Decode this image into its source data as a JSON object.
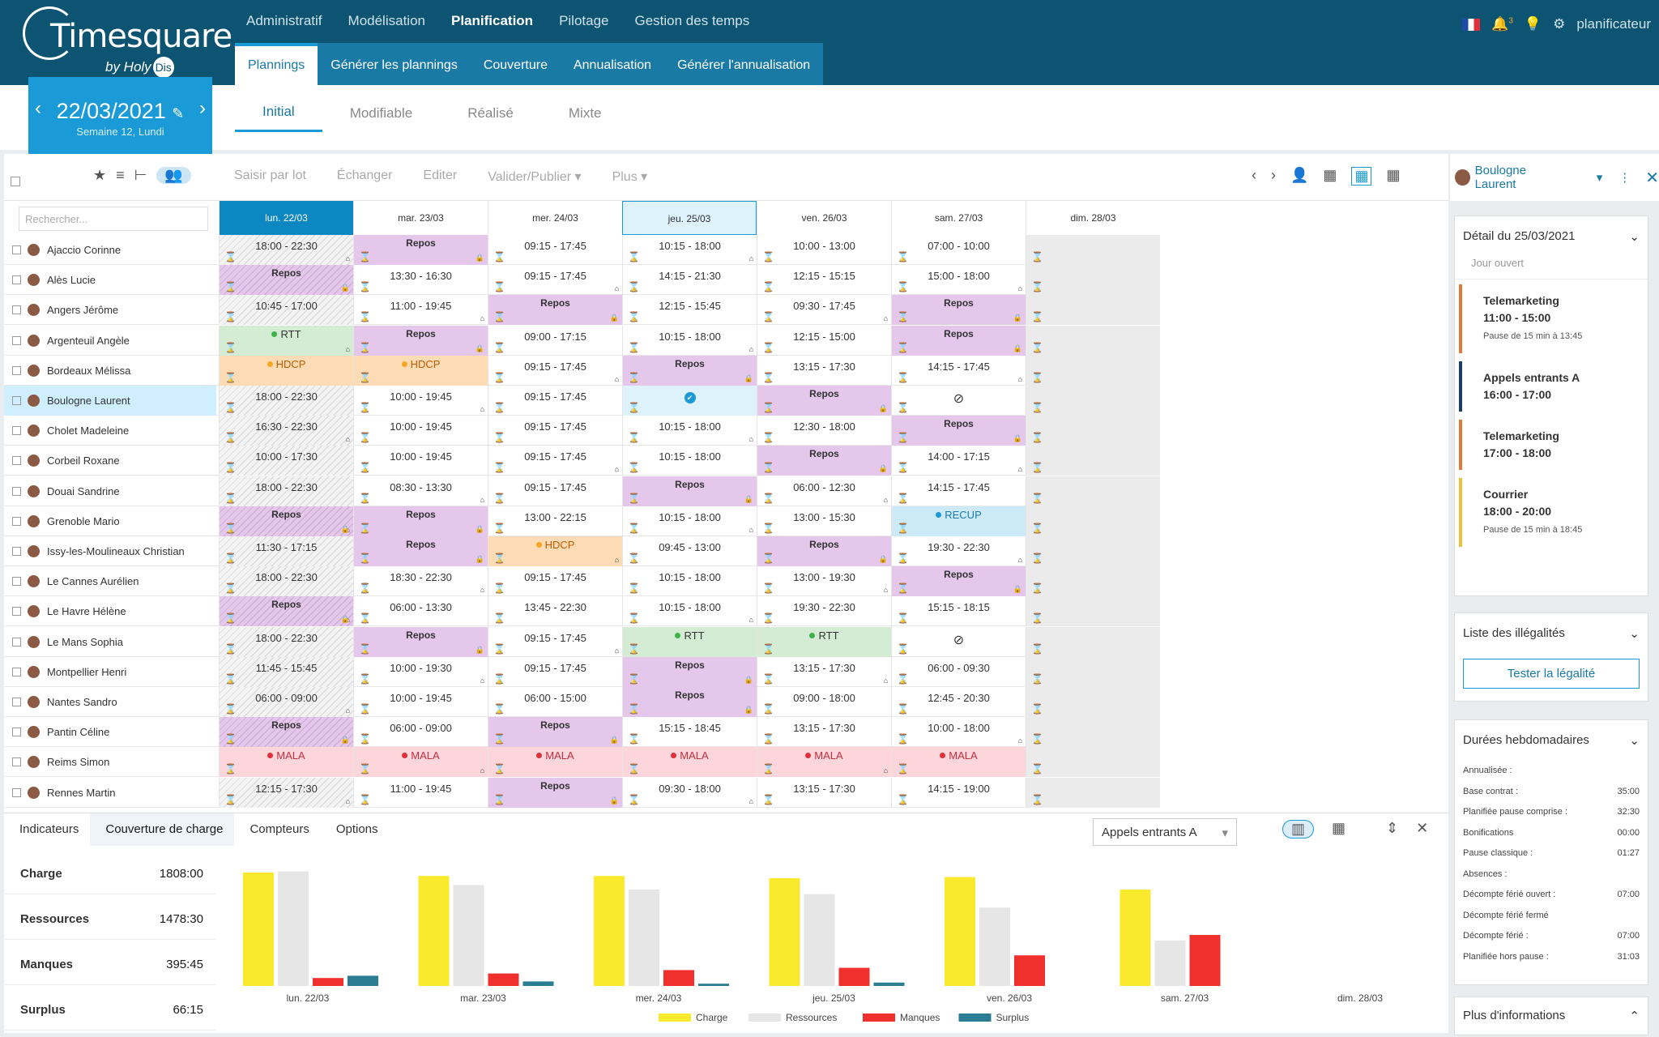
{
  "app": {
    "logo_text": "Timesquare",
    "logo_by": "by Holy",
    "logo_dis": "Dis",
    "user": "planificateur",
    "notif_count": "3"
  },
  "main_nav": [
    "Administratif",
    "Modélisation",
    "Planification",
    "Pilotage",
    "Gestion des temps"
  ],
  "main_nav_active": 2,
  "sub_nav": [
    "Plannings",
    "Générer les plannings",
    "Couverture",
    "Annualisation",
    "Générer l'annualisation"
  ],
  "date": {
    "value": "22/03/2021",
    "week": "Semaine 12, Lundi"
  },
  "view_tabs": [
    "Initial",
    "Modifiable",
    "Réalisé",
    "Mixte"
  ],
  "toolbar": {
    "saisir": "Saisir par lot",
    "echanger": "Échanger",
    "editer": "Editer",
    "valider": "Valider/Publier",
    "plus": "Plus"
  },
  "search_placeholder": "Rechercher...",
  "days": [
    "lun. 22/03",
    "mar. 23/03",
    "mer. 24/03",
    "jeu. 25/03",
    "ven. 26/03",
    "sam. 27/03",
    "dim. 28/03"
  ],
  "employees": [
    {
      "name": "Ajaccio Corinne",
      "cells": [
        "h:18:00 - 22:30",
        "R",
        "09:15 - 17:45",
        "10:15 - 18:00",
        "10:00 - 13:00",
        "07:00 - 10:00",
        "S"
      ]
    },
    {
      "name": "Alès Lucie",
      "cells": [
        "RH",
        "13:30 - 16:30",
        "09:15 - 17:45",
        "14:15 - 21:30",
        "12:15 - 15:15",
        "15:00 - 18:00",
        "S"
      ]
    },
    {
      "name": "Angers Jérôme",
      "cells": [
        "h:10:45 - 17:00",
        "11:00 - 19:45",
        "R",
        "12:15 - 15:45",
        "09:30 - 17:45",
        "R",
        "S"
      ]
    },
    {
      "name": "Argenteuil Angèle",
      "cells": [
        "RTT",
        "R",
        "09:00 - 17:15",
        "10:15 - 18:00",
        "12:15 - 15:00",
        "R",
        "S"
      ]
    },
    {
      "name": "Bordeaux Mélissa",
      "cells": [
        "HDCP",
        "HDCP",
        "09:15 - 17:45",
        "R",
        "13:15 - 17:30",
        "14:15 - 17:45",
        "S"
      ]
    },
    {
      "name": "Boulogne Laurent",
      "cells": [
        "h:18:00 - 22:30",
        "10:00 - 19:45",
        "09:15 - 17:45",
        "CHECK",
        "R",
        "NONE",
        "S"
      ]
    },
    {
      "name": "Cholet Madeleine",
      "cells": [
        "h:16:30 - 22:30",
        "10:00 - 19:45",
        "09:15 - 17:45",
        "10:15 - 18:00",
        "12:30 - 18:00",
        "R",
        "S"
      ]
    },
    {
      "name": "Corbeil Roxane",
      "cells": [
        "h:10:00 - 17:30",
        "10:00 - 19:45",
        "09:15 - 17:45",
        "10:15 - 18:00",
        "R",
        "14:00 - 17:15",
        "S"
      ]
    },
    {
      "name": "Douai Sandrine",
      "cells": [
        "h:18:00 - 22:30",
        "08:30 - 13:30",
        "09:15 - 17:45",
        "R",
        "06:00 - 12:30",
        "14:15 - 17:45",
        "S"
      ]
    },
    {
      "name": "Grenoble Mario",
      "cells": [
        "RH",
        "R",
        "13:00 - 22:15",
        "10:15 - 18:00",
        "13:00 - 15:30",
        "RECUP",
        "S"
      ]
    },
    {
      "name": "Issy-les-Moulineaux Christian",
      "cells": [
        "h:11:30 - 17:15",
        "R",
        "HDCP",
        "09:45 - 13:00",
        "R",
        "19:30 - 22:30",
        "S"
      ]
    },
    {
      "name": "Le Cannes Aurélien",
      "cells": [
        "h:18:00 - 22:30",
        "18:30 - 22:30",
        "09:15 - 17:45",
        "10:15 - 18:00",
        "13:00 - 19:30",
        "R",
        "S"
      ]
    },
    {
      "name": "Le Havre Hélène",
      "cells": [
        "RH",
        "06:00 - 13:30",
        "13:45 - 22:30",
        "10:15 - 18:00",
        "19:30 - 22:30",
        "15:15 - 18:15",
        "S"
      ]
    },
    {
      "name": "Le Mans Sophia",
      "cells": [
        "h:18:00 - 22:30",
        "R",
        "09:15 - 17:45",
        "RTT",
        "RTT",
        "NONE",
        "S"
      ]
    },
    {
      "name": "Montpellier Henri",
      "cells": [
        "h:11:45 - 15:45",
        "10:00 - 19:30",
        "09:15 - 17:45",
        "R",
        "13:15 - 17:30",
        "06:00 - 09:30",
        "S"
      ]
    },
    {
      "name": "Nantes Sandro",
      "cells": [
        "h:06:00 - 09:00",
        "10:00 - 19:45",
        "06:00 - 15:00",
        "R",
        "09:00 - 18:00",
        "12:45 - 20:30",
        "S"
      ]
    },
    {
      "name": "Pantin Céline",
      "cells": [
        "RH",
        "06:00 - 09:00",
        "R",
        "15:15 - 18:45",
        "13:15 - 17:30",
        "10:00 - 18:00",
        "S"
      ]
    },
    {
      "name": "Reims Simon",
      "cells": [
        "MALA",
        "MALA",
        "MALA",
        "MALA",
        "MALA",
        "MALA",
        "S"
      ]
    },
    {
      "name": "Rennes Martin",
      "cells": [
        "h:12:15 - 17:30",
        "11:00 - 19:45",
        "R",
        "09:30 - 18:00",
        "13:15 - 17:30",
        "14:15 - 19:00",
        "S"
      ]
    }
  ],
  "labels": {
    "repos": "Repos"
  },
  "bottom": {
    "tabs": [
      "Indicateurs",
      "Couverture de charge",
      "Compteurs",
      "Options"
    ],
    "select": "Appels entrants A",
    "kpis": [
      {
        "k": "Charge",
        "v": "1808:00"
      },
      {
        "k": "Ressources",
        "v": "1478:30"
      },
      {
        "k": "Manques",
        "v": "395:45"
      },
      {
        "k": "Surplus",
        "v": "66:15"
      }
    ]
  },
  "chart_data": {
    "type": "bar",
    "categories": [
      "lun. 22/03",
      "mar. 23/03",
      "mer. 24/03",
      "jeu. 25/03",
      "ven. 26/03",
      "sam. 27/03",
      "dim. 28/03"
    ],
    "series": [
      {
        "name": "Charge",
        "color": "#f9ea2d",
        "values": [
          100,
          97,
          97,
          95,
          96,
          85,
          0
        ]
      },
      {
        "name": "Ressources",
        "color": "#e6e6e6",
        "values": [
          101,
          89,
          85,
          81,
          69,
          40,
          0
        ]
      },
      {
        "name": "Manques",
        "color": "#f0302c",
        "values": [
          7,
          11,
          14,
          16,
          27,
          45,
          0
        ]
      },
      {
        "name": "Surplus",
        "color": "#2a7d93",
        "values": [
          9,
          4,
          2,
          3,
          0,
          0,
          0
        ]
      }
    ]
  },
  "right": {
    "user": "Boulogne Laurent",
    "detail_title": "Détail du 25/03/2021",
    "jour": "Jour ouvert",
    "activities": [
      {
        "name": "Telemarketing",
        "time": "11:00 - 15:00",
        "note": "Pause de 15 min à 13:45",
        "color": "#e07a3a"
      },
      {
        "name": "Appels entrants A",
        "time": "16:00 - 17:00",
        "note": "",
        "color": "#1a3d6e"
      },
      {
        "name": "Telemarketing",
        "time": "17:00 - 18:00",
        "note": "",
        "color": "#e07a3a"
      },
      {
        "name": "Courrier",
        "time": "18:00 - 20:00",
        "note": "Pause de 15 min à 18:45",
        "color": "#e8c23a"
      }
    ],
    "illegal_title": "Liste des illégalités",
    "test_btn": "Tester la légalité",
    "durees_title": "Durées hebdomadaires",
    "durees": [
      {
        "k": "Annualisée :",
        "v": ""
      },
      {
        "k": "Base contrat :",
        "v": "35:00"
      },
      {
        "k": "Planifiée pause comprise :",
        "v": "32:30"
      },
      {
        "k": "Bonifications",
        "v": "00:00"
      },
      {
        "k": "Pause classique :",
        "v": "01:27"
      },
      {
        "k": "Absences :",
        "v": ""
      },
      {
        "k": "Décompte férié ouvert :",
        "v": "07:00"
      },
      {
        "k": "Décompte férié fermé",
        "v": ""
      },
      {
        "k": "Décompte férié :",
        "v": "07:00"
      },
      {
        "k": "Planifiée hors pause :",
        "v": "31:03"
      }
    ],
    "more": "Plus d'informations"
  }
}
